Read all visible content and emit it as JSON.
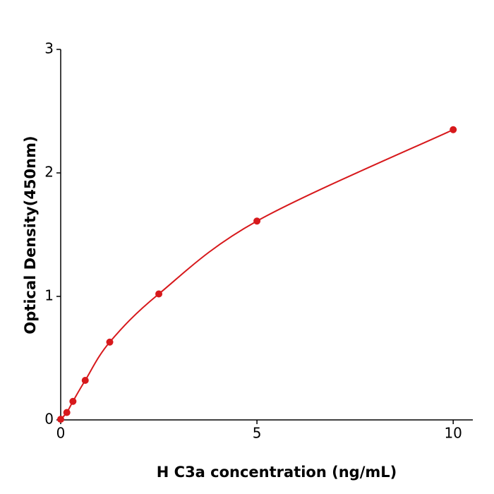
{
  "chart_data": {
    "type": "scatter",
    "x_label": "H  C3a concentration (ng/mL)",
    "y_label": "Optical Density(450nm)",
    "x": [
      0,
      0.156,
      0.312,
      0.625,
      1.25,
      2.5,
      5,
      10
    ],
    "values": [
      0.005,
      0.06,
      0.15,
      0.32,
      0.63,
      1.02,
      1.61,
      2.35
    ],
    "color": "#d7191c",
    "fit_line": true,
    "xlim": [
      0,
      10.5
    ],
    "xticks": [
      0,
      5,
      10
    ],
    "ylim": [
      0,
      3
    ],
    "yticks": [
      0,
      1,
      2,
      3
    ],
    "grid": false
  }
}
